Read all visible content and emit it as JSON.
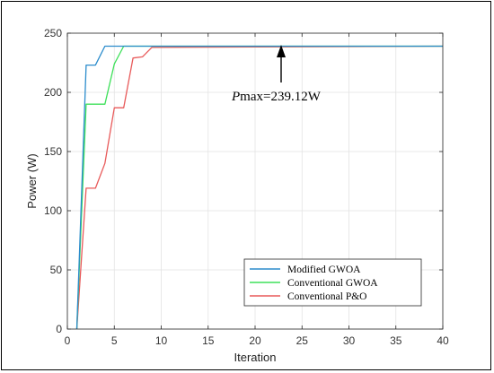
{
  "chart_data": {
    "type": "line",
    "title": "",
    "xlabel": "Iteration",
    "ylabel": "Power (W)",
    "xlim": [
      0,
      40
    ],
    "ylim": [
      0,
      250
    ],
    "xticks": [
      0,
      5,
      10,
      15,
      20,
      25,
      30,
      35,
      40
    ],
    "yticks": [
      0,
      50,
      100,
      150,
      200,
      250
    ],
    "grid": true,
    "legend_position": "bottom-right",
    "annotation": {
      "symbol": "P",
      "text": "max=239.12W",
      "x": 23,
      "y": 239.12
    },
    "series": [
      {
        "name": "Modified GWOA",
        "color": "#2b8ccc",
        "x": [
          1,
          2,
          3,
          4,
          5,
          40
        ],
        "y": [
          0,
          223,
          223,
          239,
          239,
          239
        ]
      },
      {
        "name": "Conventional GWOA",
        "color": "#3ee05a",
        "x": [
          1,
          2,
          3,
          4,
          5,
          6,
          9,
          40
        ],
        "y": [
          0,
          190,
          190,
          190,
          224,
          239,
          239,
          239
        ]
      },
      {
        "name": "Conventional P&O",
        "color": "#e85a5a",
        "x": [
          1,
          2,
          3,
          4,
          5,
          6,
          7,
          8,
          9,
          40
        ],
        "y": [
          0,
          119,
          119,
          140,
          187,
          187,
          229,
          230,
          238,
          239
        ]
      }
    ]
  }
}
